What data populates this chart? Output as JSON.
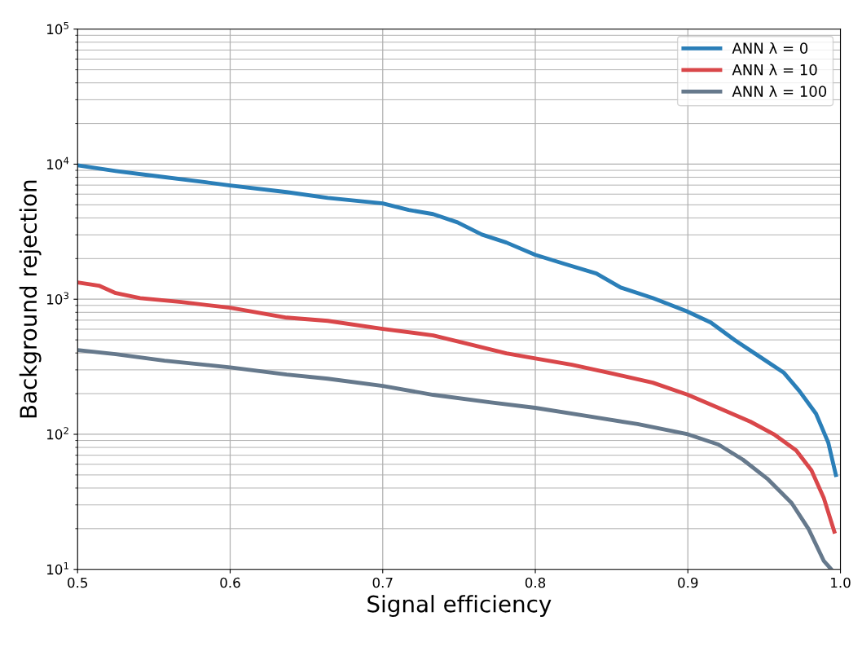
{
  "chart_data": {
    "type": "line",
    "xlabel": "Signal efficiency",
    "ylabel": "Background rejection",
    "log": "y",
    "xlim": [
      0.5,
      1.0
    ],
    "ylim": [
      10,
      100000
    ],
    "xticks": [
      0.5,
      0.6,
      0.7,
      0.8,
      0.9,
      {
        "value": 1.0,
        "label": "1.0"
      }
    ],
    "yticks": [
      {
        "value": 10,
        "label": "10$^{1}$"
      },
      {
        "value": 100,
        "label": "10$^{2}$"
      },
      {
        "value": 1000,
        "label": "10$^{3}$"
      },
      {
        "value": 10000,
        "label": "10$^{4}$"
      },
      {
        "value": 100000,
        "label": "10$^{5}$"
      }
    ],
    "grid": true,
    "legend": "top right",
    "line_style": "solid",
    "marker": "none",
    "series": [
      {
        "name": "ANN λ = 0",
        "color": "#2b7fb8",
        "x": [
          0.5,
          0.525,
          0.55,
          0.584,
          0.6,
          0.637,
          0.664,
          0.7,
          0.717,
          0.733,
          0.749,
          0.765,
          0.781,
          0.8,
          0.819,
          0.84,
          0.856,
          0.877,
          0.899,
          0.915,
          0.931,
          0.947,
          0.963,
          0.973,
          0.984,
          0.992,
          0.997
        ],
        "values": [
          9800,
          8900,
          8200,
          7350,
          6950,
          6210,
          5630,
          5120,
          4580,
          4270,
          3710,
          3010,
          2630,
          2130,
          1830,
          1550,
          1220,
          1020,
          818,
          673,
          496,
          376,
          285,
          210,
          142,
          87,
          50
        ]
      },
      {
        "name": "ANN λ = 10",
        "color": "#d9474a",
        "x": [
          0.5,
          0.514,
          0.525,
          0.541,
          0.568,
          0.6,
          0.637,
          0.664,
          0.7,
          0.733,
          0.755,
          0.781,
          0.8,
          0.824,
          0.851,
          0.877,
          0.9,
          0.92,
          0.941,
          0.957,
          0.971,
          0.981,
          0.989,
          0.996
        ],
        "values": [
          1330,
          1260,
          1110,
          1020,
          953,
          865,
          731,
          692,
          603,
          540,
          469,
          397,
          365,
          327,
          281,
          241,
          196,
          157,
          124,
          99,
          76,
          54,
          34,
          19
        ]
      },
      {
        "name": "ANN λ = 100",
        "color": "#66798c",
        "x": [
          0.5,
          0.525,
          0.557,
          0.6,
          0.637,
          0.664,
          0.7,
          0.733,
          0.771,
          0.8,
          0.835,
          0.867,
          0.9,
          0.92,
          0.936,
          0.952,
          0.968,
          0.979,
          0.989,
          0.994
        ],
        "values": [
          420,
          392,
          351,
          313,
          277,
          258,
          228,
          196,
          172,
          157,
          136,
          119,
          100,
          84,
          65,
          47,
          31,
          20,
          11.6,
          10
        ]
      }
    ]
  }
}
